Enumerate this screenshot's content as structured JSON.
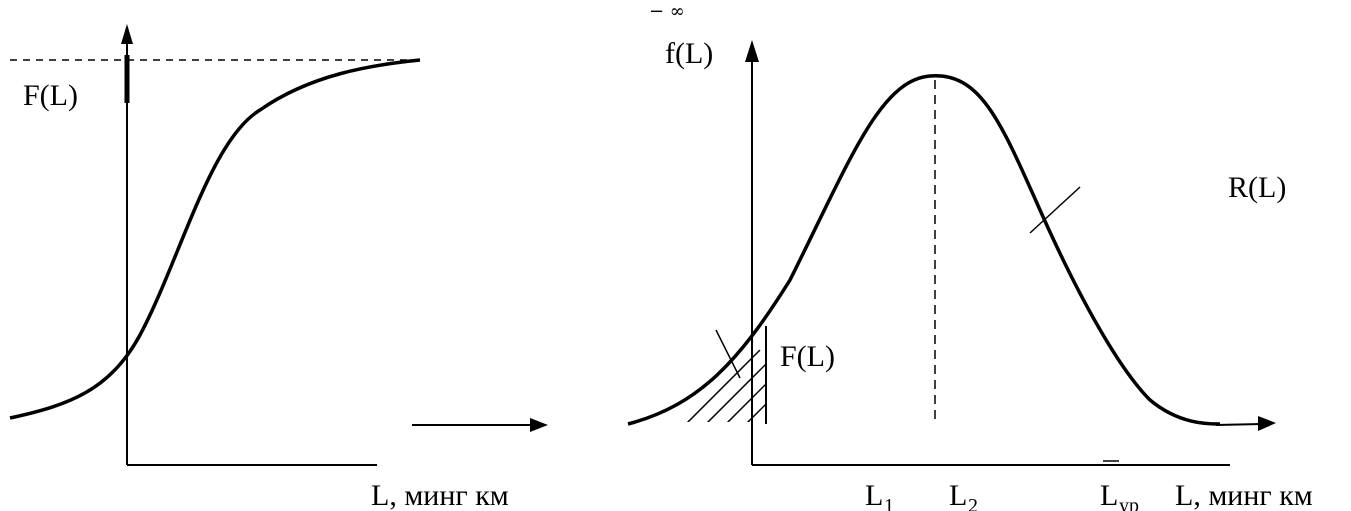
{
  "left_panel": {
    "y_label": "F(L)",
    "x_label": "L, минг км"
  },
  "right_panel": {
    "y_label": "f(L)",
    "infinity_mark": "− ∞",
    "area_label": "F(L)",
    "reliability_label": "R(L)",
    "x_label": "L, минг км",
    "tick_l1": {
      "base": "L",
      "sub": "1"
    },
    "tick_l2": {
      "base": "L",
      "sub": "2"
    },
    "tick_lyp": {
      "base": "L",
      "sub": "ур"
    }
  },
  "colors": {
    "stroke": "#000000",
    "background": "#ffffff"
  }
}
